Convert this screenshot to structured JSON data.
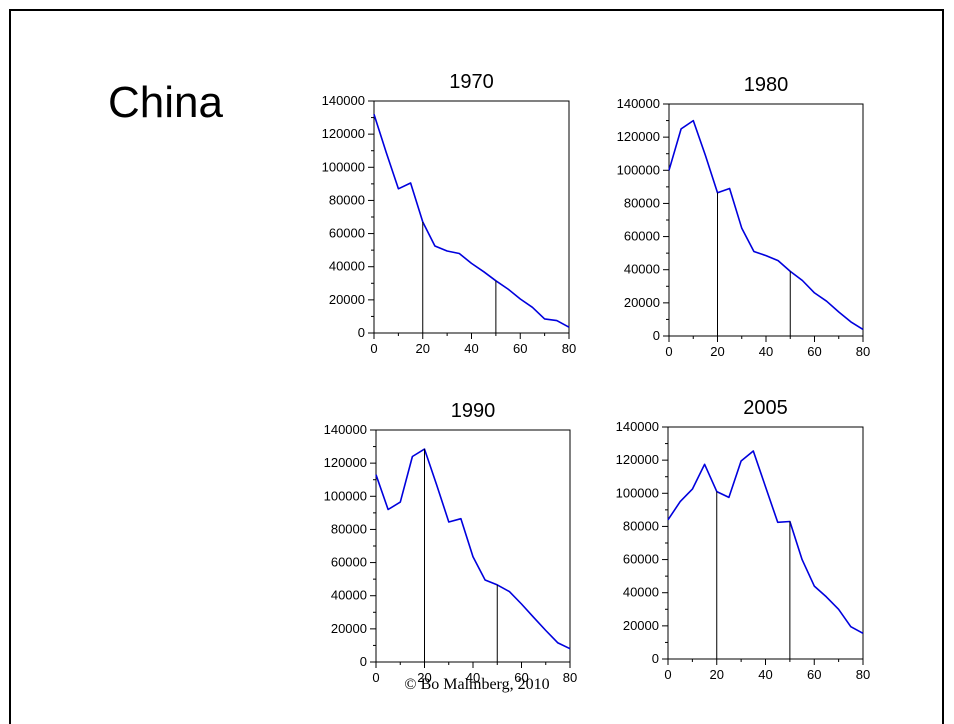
{
  "page": {
    "title": "China",
    "credit": "© Bo Malmberg, 2010"
  },
  "colors": {
    "line": "#0000dd",
    "axis": "#000000",
    "marker": "#000000"
  },
  "chart_data": [
    {
      "type": "line",
      "title": "1970",
      "x": [
        0,
        5,
        10,
        15,
        20,
        25,
        30,
        35,
        40,
        45,
        50,
        55,
        60,
        65,
        70,
        75,
        80
      ],
      "y": [
        132000,
        109000,
        87000,
        90500,
        67000,
        52500,
        49500,
        48000,
        42000,
        37000,
        31500,
        26500,
        20500,
        15500,
        8500,
        7500,
        3500
      ],
      "markers_x": [
        20,
        50
      ],
      "xlim": [
        0,
        80
      ],
      "ylim": [
        0,
        140000
      ],
      "xticks": [
        0,
        20,
        40,
        60,
        80
      ],
      "yticks": [
        0,
        20000,
        40000,
        60000,
        80000,
        100000,
        120000,
        140000
      ],
      "xlabel": "",
      "ylabel": "",
      "grid": false
    },
    {
      "type": "line",
      "title": "1980",
      "x": [
        0,
        5,
        10,
        15,
        20,
        25,
        30,
        35,
        40,
        45,
        50,
        55,
        60,
        65,
        70,
        75,
        80
      ],
      "y": [
        100000,
        125000,
        130000,
        109000,
        86500,
        89000,
        65000,
        51000,
        48500,
        45500,
        39000,
        33500,
        26000,
        21000,
        14500,
        8500,
        4000
      ],
      "markers_x": [
        20,
        50
      ],
      "xlim": [
        0,
        80
      ],
      "ylim": [
        0,
        140000
      ],
      "xticks": [
        0,
        20,
        40,
        60,
        80
      ],
      "yticks": [
        0,
        20000,
        40000,
        60000,
        80000,
        100000,
        120000,
        140000
      ],
      "xlabel": "",
      "ylabel": "",
      "grid": false
    },
    {
      "type": "line",
      "title": "1990",
      "x": [
        0,
        5,
        10,
        15,
        20,
        25,
        30,
        35,
        40,
        45,
        50,
        55,
        60,
        65,
        70,
        75,
        80
      ],
      "y": [
        113000,
        92000,
        96500,
        124000,
        128500,
        107000,
        84500,
        86500,
        63500,
        49500,
        46500,
        42500,
        35000,
        27000,
        19000,
        11500,
        8000
      ],
      "markers_x": [
        20,
        50
      ],
      "xlim": [
        0,
        80
      ],
      "ylim": [
        0,
        140000
      ],
      "xticks": [
        0,
        20,
        40,
        60,
        80
      ],
      "yticks": [
        0,
        20000,
        40000,
        60000,
        80000,
        100000,
        120000,
        140000
      ],
      "xlabel": "",
      "ylabel": "",
      "grid": false
    },
    {
      "type": "line",
      "title": "2005",
      "x": [
        0,
        5,
        10,
        15,
        20,
        25,
        30,
        35,
        40,
        45,
        50,
        55,
        60,
        65,
        70,
        75,
        80
      ],
      "y": [
        84000,
        95000,
        102500,
        117500,
        101000,
        97500,
        119500,
        125500,
        104000,
        82500,
        83000,
        60000,
        44000,
        37500,
        30000,
        19500,
        15500
      ],
      "markers_x": [
        20,
        50
      ],
      "xlim": [
        0,
        80
      ],
      "ylim": [
        0,
        140000
      ],
      "xticks": [
        0,
        20,
        40,
        60,
        80
      ],
      "yticks": [
        0,
        20000,
        40000,
        60000,
        80000,
        100000,
        120000,
        140000
      ],
      "xlabel": "",
      "ylabel": "",
      "grid": false
    }
  ]
}
